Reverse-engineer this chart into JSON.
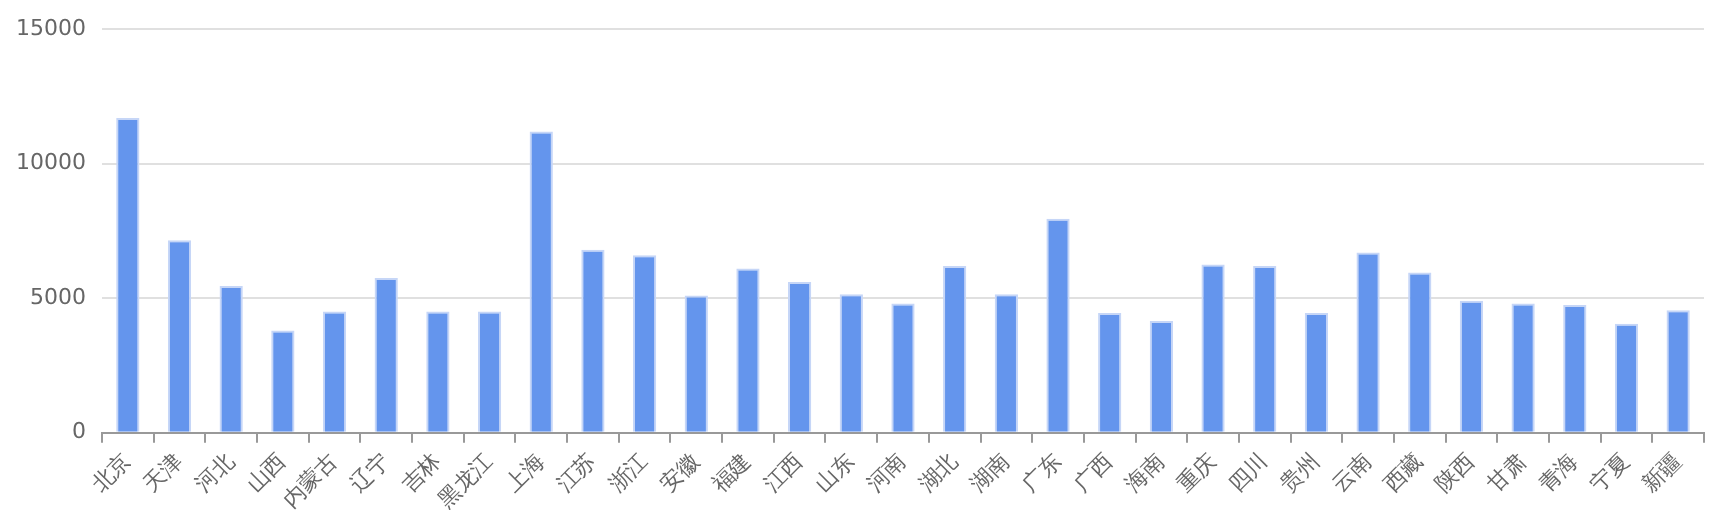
{
  "chart_data": {
    "type": "bar",
    "categories": [
      "北京",
      "天津",
      "河北",
      "山西",
      "内蒙古",
      "辽宁",
      "吉林",
      "黑龙江",
      "上海",
      "江苏",
      "浙江",
      "安徽",
      "福建",
      "江西",
      "山东",
      "河南",
      "湖北",
      "湖南",
      "广东",
      "广西",
      "海南",
      "重庆",
      "四川",
      "贵州",
      "云南",
      "西藏",
      "陕西",
      "甘肃",
      "青海",
      "宁夏",
      "新疆"
    ],
    "values": [
      11700,
      7150,
      5450,
      3800,
      4500,
      5750,
      4500,
      4500,
      11200,
      6800,
      6600,
      5100,
      6100,
      5600,
      5150,
      4800,
      6200,
      5150,
      7950,
      4450,
      4150,
      6250,
      6200,
      4450,
      6700,
      5950,
      4900,
      4800,
      4750,
      4050,
      4550
    ],
    "color": "#6495ed",
    "ylim": [
      0,
      15000
    ],
    "yticks": [
      0,
      5000,
      10000,
      15000
    ],
    "grid": "y"
  }
}
